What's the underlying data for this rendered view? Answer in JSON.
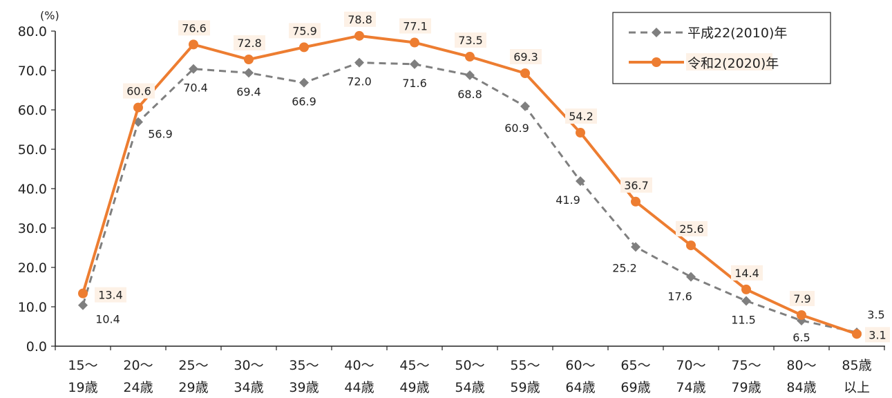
{
  "chart_data": {
    "type": "line",
    "title": "",
    "xlabel": "",
    "ylabel": "",
    "y_unit": "(%)",
    "ylim": [
      0,
      80
    ],
    "yticks": [
      "0.0",
      "10.0",
      "20.0",
      "30.0",
      "40.0",
      "50.0",
      "60.0",
      "70.0",
      "80.0"
    ],
    "categories": [
      [
        "15～",
        "19歳"
      ],
      [
        "20～",
        "24歳"
      ],
      [
        "25～",
        "29歳"
      ],
      [
        "30～",
        "34歳"
      ],
      [
        "35～",
        "39歳"
      ],
      [
        "40～",
        "44歳"
      ],
      [
        "45～",
        "49歳"
      ],
      [
        "50～",
        "54歳"
      ],
      [
        "55～",
        "59歳"
      ],
      [
        "60～",
        "64歳"
      ],
      [
        "65～",
        "69歳"
      ],
      [
        "70～",
        "74歳"
      ],
      [
        "75～",
        "79歳"
      ],
      [
        "80～",
        "84歳"
      ],
      [
        "85歳",
        "以上"
      ]
    ],
    "series": [
      {
        "name": "平成22(2010)年",
        "color": "#7f7f7f",
        "line_style": "dashed",
        "marker": "diamond",
        "values": [
          10.4,
          56.9,
          70.4,
          69.4,
          66.9,
          72.0,
          71.6,
          68.8,
          60.9,
          41.9,
          25.2,
          17.6,
          11.5,
          6.5,
          3.5
        ],
        "labels": [
          "10.4",
          "56.9",
          "70.4",
          "69.4",
          "66.9",
          "72.0",
          "71.6",
          "68.8",
          "60.9",
          "41.9",
          "25.2",
          "17.6",
          "11.5",
          "6.5",
          "3.5"
        ]
      },
      {
        "name": "令和2(2020)年",
        "color": "#ed7d31",
        "line_style": "solid",
        "marker": "circle",
        "label_background": "#fdf1e6",
        "values": [
          13.4,
          60.6,
          76.6,
          72.8,
          75.9,
          78.8,
          77.1,
          73.5,
          69.3,
          54.2,
          36.7,
          25.6,
          14.4,
          7.9,
          3.1
        ],
        "labels": [
          "13.4",
          "60.6",
          "76.6",
          "72.8",
          "75.9",
          "78.8",
          "77.1",
          "73.5",
          "69.3",
          "54.2",
          "36.7",
          "25.6",
          "14.4",
          "7.9",
          "3.1"
        ]
      }
    ],
    "grid": false,
    "legend_position": "top-right"
  }
}
